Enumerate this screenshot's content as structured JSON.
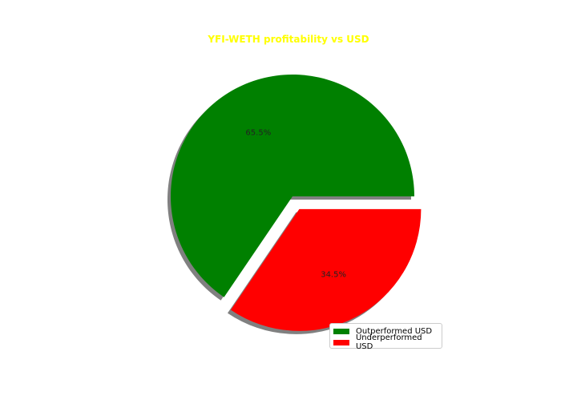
{
  "chart_data": {
    "type": "pie",
    "title": "YFI-WETH profitability vs USD",
    "title_color": "#ffff00",
    "slices": [
      {
        "label": "Outperformed USD",
        "value": 65.5,
        "pct_label": "65.5%",
        "color": "#008000",
        "exploded": false
      },
      {
        "label": "Underperformed USD",
        "value": 34.5,
        "pct_label": "34.5%",
        "color": "#ff0000",
        "exploded": true
      }
    ],
    "start_angle_deg": 0,
    "direction": "counterclockwise",
    "shadow": true,
    "legend_placement": "lower-right"
  }
}
